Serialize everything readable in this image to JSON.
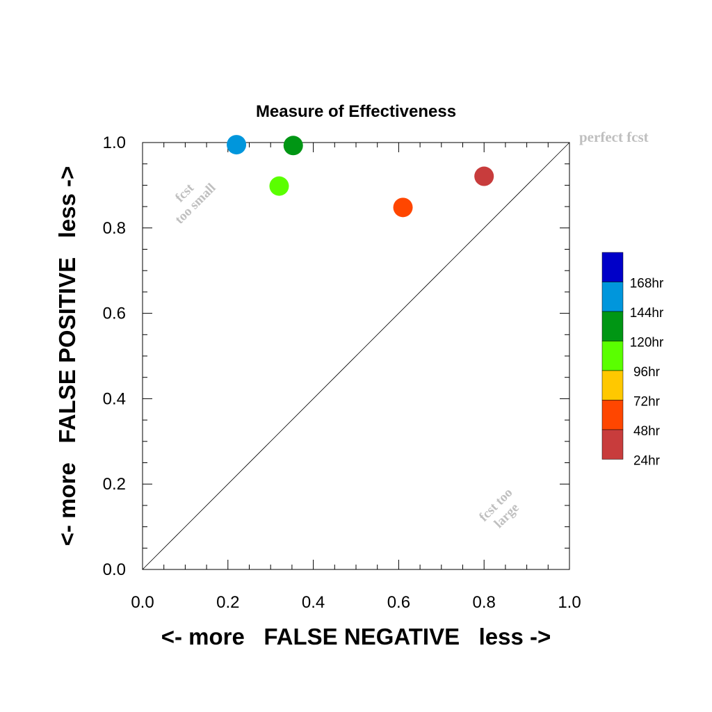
{
  "chart_data": {
    "type": "scatter",
    "title": "Measure of Effectiveness",
    "xlabel": "<- more   FALSE NEGATIVE   less ->",
    "ylabel": "<- more   FALSE POSITIVE   less ->",
    "xlim": [
      0.0,
      1.0
    ],
    "ylim": [
      0.0,
      1.0
    ],
    "x_ticks": [
      "0.0",
      "0.2",
      "0.4",
      "0.6",
      "0.8",
      "1.0"
    ],
    "y_ticks": [
      "0.0",
      "0.2",
      "0.4",
      "0.6",
      "0.8",
      "1.0"
    ],
    "grid": false,
    "reference_line": "diagonal y = x",
    "annotations": {
      "perfect": "perfect fcst",
      "too_small": [
        "fcst",
        "too small"
      ],
      "too_large": [
        "fcst too",
        "large"
      ]
    },
    "points": [
      {
        "lead": "144hr",
        "x": 0.22,
        "y": 0.995,
        "color": "#0096dc"
      },
      {
        "lead": "120hr",
        "x": 0.353,
        "y": 0.993,
        "color": "#009614"
      },
      {
        "lead": "96hr",
        "x": 0.32,
        "y": 0.898,
        "color": "#5aff00"
      },
      {
        "lead": "48hr",
        "x": 0.61,
        "y": 0.848,
        "color": "#ff4600"
      },
      {
        "lead": "24hr",
        "x": 0.8,
        "y": 0.921,
        "color": "#c83c3c"
      }
    ],
    "legend": {
      "placement": "right",
      "entries": [
        {
          "label": "168hr",
          "color": "#0000c8"
        },
        {
          "label": "144hr",
          "color": "#0096dc"
        },
        {
          "label": "120hr",
          "color": "#009614"
        },
        {
          "label": "96hr",
          "color": "#5aff00"
        },
        {
          "label": "72hr",
          "color": "#ffc800"
        },
        {
          "label": "48hr",
          "color": "#ff4600"
        },
        {
          "label": "24hr",
          "color": "#c83c3c"
        }
      ]
    },
    "annotation_color": "#bfbfbf"
  }
}
